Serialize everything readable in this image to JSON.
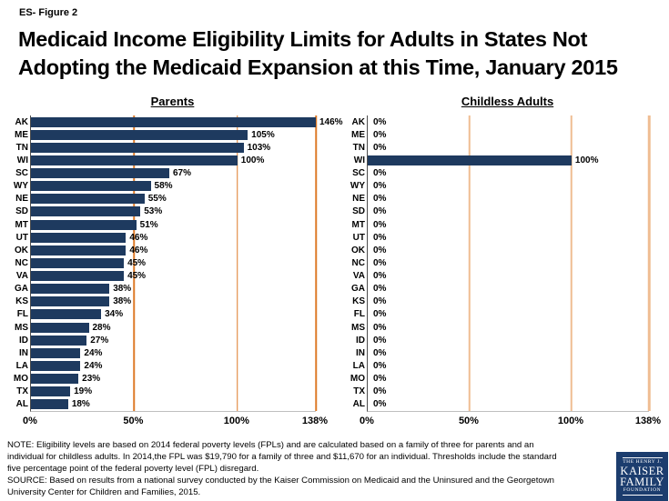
{
  "header": {
    "figure_label": "ES- Figure 2",
    "title_line1": "Medicaid Income Eligibility Limits for Adults in States Not",
    "title_line2": "Adopting the Medicaid Expansion at this Time, January 2015"
  },
  "colors": {
    "bar": "#1E3A5F",
    "gridline_parents": "#DD7A28",
    "gridline_childless": "#EFBD92",
    "logo_background": "#1C3D6E"
  },
  "chart_data": [
    {
      "type": "bar",
      "orientation": "horizontal",
      "title": "Parents",
      "categories": [
        "AK",
        "ME",
        "TN",
        "WI",
        "SC",
        "WY",
        "NE",
        "SD",
        "MT",
        "UT",
        "OK",
        "NC",
        "VA",
        "GA",
        "KS",
        "FL",
        "MS",
        "ID",
        "IN",
        "LA",
        "MO",
        "TX",
        "AL"
      ],
      "values": [
        146,
        105,
        103,
        100,
        67,
        58,
        55,
        53,
        51,
        46,
        46,
        45,
        45,
        38,
        38,
        34,
        28,
        27,
        24,
        24,
        23,
        19,
        18
      ],
      "value_labels": [
        "146%",
        "105%",
        "103%",
        "100%",
        "67%",
        "58%",
        "55%",
        "53%",
        "51%",
        "46%",
        "46%",
        "45%",
        "45%",
        "38%",
        "38%",
        "34%",
        "28%",
        "27%",
        "24%",
        "24%",
        "23%",
        "19%",
        "18%"
      ],
      "xlim": [
        0,
        138
      ],
      "x_ticks": [
        "0%",
        "50%",
        "100%",
        "138%"
      ],
      "x_tick_values": [
        0,
        50,
        100,
        138
      ],
      "grid": true,
      "legend": "none"
    },
    {
      "type": "bar",
      "orientation": "horizontal",
      "title": "Childless Adults",
      "categories": [
        "AK",
        "ME",
        "TN",
        "WI",
        "SC",
        "WY",
        "NE",
        "SD",
        "MT",
        "UT",
        "OK",
        "NC",
        "VA",
        "GA",
        "KS",
        "FL",
        "MS",
        "ID",
        "IN",
        "LA",
        "MO",
        "TX",
        "AL"
      ],
      "values": [
        0,
        0,
        0,
        100,
        0,
        0,
        0,
        0,
        0,
        0,
        0,
        0,
        0,
        0,
        0,
        0,
        0,
        0,
        0,
        0,
        0,
        0,
        0
      ],
      "value_labels": [
        "0%",
        "0%",
        "0%",
        "100%",
        "0%",
        "0%",
        "0%",
        "0%",
        "0%",
        "0%",
        "0%",
        "0%",
        "0%",
        "0%",
        "0%",
        "0%",
        "0%",
        "0%",
        "0%",
        "0%",
        "0%",
        "0%",
        "0%"
      ],
      "xlim": [
        0,
        138
      ],
      "x_ticks": [
        "0%",
        "50%",
        "100%",
        "138%"
      ],
      "x_tick_values": [
        0,
        50,
        100,
        138
      ],
      "grid": true,
      "legend": "none"
    }
  ],
  "footnote": {
    "lines": [
      "NOTE: Eligibility levels are based on 2014 federal poverty levels (FPLs) and are calculated based on a family of three for parents and an",
      "individual for childless adults. In 2014,the FPL was $19,790 for a family of three and $11,670 for an individual. Thresholds include the standard",
      "five percentage point of the federal poverty level (FPL) disregard.",
      "SOURCE: Based on results from a national survey conducted by the Kaiser Commission on Medicaid and the Uninsured and the Georgetown",
      "University Center for Children and Families, 2015."
    ]
  },
  "logo": {
    "line1": "THE HENRY J.",
    "line2": "KAISER",
    "line3": "FAMILY",
    "line4": "FOUNDATION"
  }
}
